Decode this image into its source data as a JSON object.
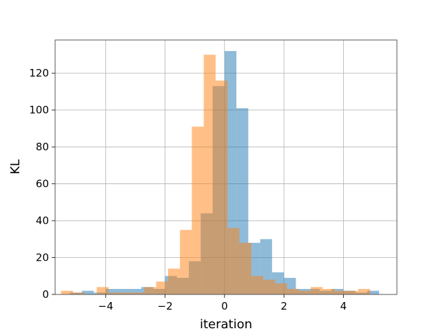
{
  "chart_data": {
    "type": "histogram",
    "xlabel": "iteration",
    "ylabel": "KL",
    "xlim": [
      -5.7,
      5.8
    ],
    "ylim": [
      0,
      138
    ],
    "grid": true,
    "xticks": [
      -4,
      -2,
      0,
      2,
      4
    ],
    "yticks": [
      0,
      20,
      40,
      60,
      80,
      100,
      120
    ],
    "series": [
      {
        "color": "#1f77b4",
        "alpha": 0.5,
        "bin_edges": [
          -5.2,
          -4.8,
          -4.4,
          -4.0,
          -3.6,
          -3.2,
          -2.8,
          -2.4,
          -2.0,
          -1.6,
          -1.2,
          -0.8,
          -0.4,
          0.0,
          0.4,
          0.8,
          1.2,
          1.6,
          2.0,
          2.4,
          2.8,
          3.2,
          3.6,
          4.0,
          4.4,
          4.8,
          5.2
        ],
        "counts": [
          1,
          2,
          1,
          3,
          3,
          3,
          4,
          3,
          10,
          9,
          18,
          44,
          113,
          132,
          101,
          28,
          30,
          12,
          9,
          3,
          3,
          2,
          3,
          2,
          1,
          2
        ]
      },
      {
        "color": "#ff7f0e",
        "alpha": 0.5,
        "bin_edges": [
          -5.5,
          -5.1,
          -4.7,
          -4.3,
          -3.9,
          -3.5,
          -3.1,
          -2.7,
          -2.3,
          -1.9,
          -1.5,
          -1.1,
          -0.7,
          -0.3,
          0.1,
          0.5,
          0.9,
          1.3,
          1.7,
          2.1,
          2.5,
          2.9,
          3.3,
          3.7,
          4.1,
          4.5,
          4.9
        ],
        "counts": [
          2,
          1,
          0,
          4,
          1,
          1,
          1,
          4,
          7,
          14,
          35,
          91,
          130,
          116,
          36,
          28,
          10,
          8,
          6,
          3,
          2,
          4,
          3,
          2,
          2,
          3
        ]
      }
    ]
  }
}
